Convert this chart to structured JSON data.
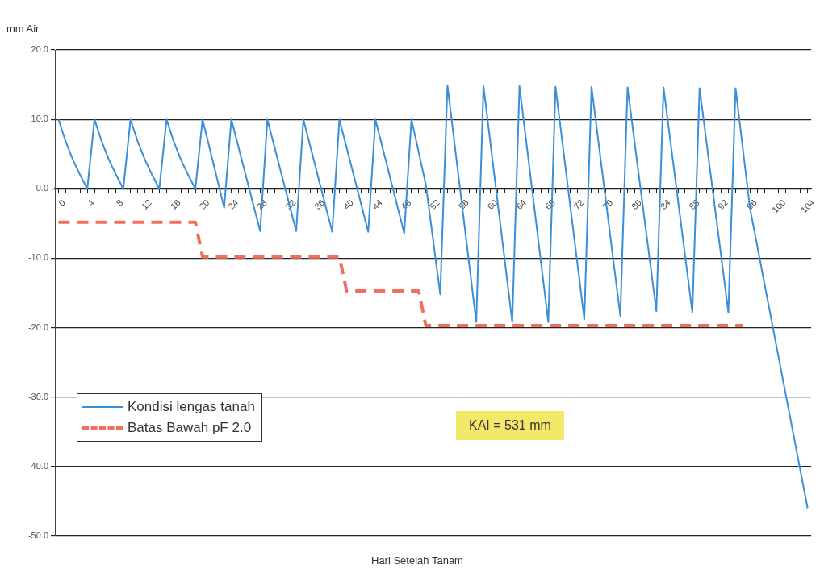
{
  "chart_data": {
    "type": "line",
    "ylabel": "mm Air",
    "xlabel": "Hari Setelah Tanam",
    "xlim": [
      -0.5,
      104.5
    ],
    "xticks": [
      0,
      {
        "value": 1,
        "label": null
      },
      {
        "value": 2,
        "label": null
      },
      {
        "value": 3,
        "label": null
      },
      4,
      {
        "value": 5,
        "label": null
      },
      {
        "value": 6,
        "label": null
      },
      {
        "value": 7,
        "label": null
      },
      8,
      {
        "value": 9,
        "label": null
      },
      {
        "value": 10,
        "label": null
      },
      {
        "value": 11,
        "label": null
      },
      12,
      {
        "value": 13,
        "label": null
      },
      {
        "value": 14,
        "label": null
      },
      {
        "value": 15,
        "label": null
      },
      16,
      {
        "value": 17,
        "label": null
      },
      {
        "value": 18,
        "label": null
      },
      {
        "value": 19,
        "label": null
      },
      20,
      {
        "value": 21,
        "label": null
      },
      {
        "value": 22,
        "label": null
      },
      {
        "value": 23,
        "label": null
      },
      24,
      {
        "value": 25,
        "label": null
      },
      {
        "value": 26,
        "label": null
      },
      {
        "value": 27,
        "label": null
      },
      28,
      {
        "value": 29,
        "label": null
      },
      {
        "value": 30,
        "label": null
      },
      {
        "value": 31,
        "label": null
      },
      32,
      {
        "value": 33,
        "label": null
      },
      {
        "value": 34,
        "label": null
      },
      {
        "value": 35,
        "label": null
      },
      36,
      {
        "value": 37,
        "label": null
      },
      {
        "value": 38,
        "label": null
      },
      {
        "value": 39,
        "label": null
      },
      40,
      {
        "value": 41,
        "label": null
      },
      {
        "value": 42,
        "label": null
      },
      {
        "value": 43,
        "label": null
      },
      44,
      {
        "value": 45,
        "label": null
      },
      {
        "value": 46,
        "label": null
      },
      {
        "value": 47,
        "label": null
      },
      48,
      {
        "value": 49,
        "label": null
      },
      {
        "value": 50,
        "label": null
      },
      {
        "value": 51,
        "label": null
      },
      52,
      {
        "value": 53,
        "label": null
      },
      {
        "value": 54,
        "label": null
      },
      {
        "value": 55,
        "label": null
      },
      56,
      {
        "value": 57,
        "label": null
      },
      {
        "value": 58,
        "label": null
      },
      {
        "value": 59,
        "label": null
      },
      60,
      {
        "value": 61,
        "label": null
      },
      {
        "value": 62,
        "label": null
      },
      {
        "value": 63,
        "label": null
      },
      64,
      {
        "value": 65,
        "label": null
      },
      {
        "value": 66,
        "label": null
      },
      {
        "value": 67,
        "label": null
      },
      68,
      {
        "value": 69,
        "label": null
      },
      {
        "value": 70,
        "label": null
      },
      {
        "value": 71,
        "label": null
      },
      72,
      {
        "value": 73,
        "label": null
      },
      {
        "value": 74,
        "label": null
      },
      {
        "value": 75,
        "label": null
      },
      76,
      {
        "value": 77,
        "label": null
      },
      {
        "value": 78,
        "label": null
      },
      {
        "value": 79,
        "label": null
      },
      80,
      {
        "value": 81,
        "label": null
      },
      {
        "value": 82,
        "label": null
      },
      {
        "value": 83,
        "label": null
      },
      84,
      {
        "value": 85,
        "label": null
      },
      {
        "value": 86,
        "label": null
      },
      {
        "value": 87,
        "label": null
      },
      88,
      {
        "value": 89,
        "label": null
      },
      {
        "value": 90,
        "label": null
      },
      {
        "value": 91,
        "label": null
      },
      92,
      {
        "value": 93,
        "label": null
      },
      {
        "value": 94,
        "label": null
      },
      {
        "value": 95,
        "label": null
      },
      96,
      {
        "value": 97,
        "label": null
      },
      {
        "value": 98,
        "label": null
      },
      {
        "value": 99,
        "label": null
      },
      100,
      {
        "value": 101,
        "label": null
      },
      {
        "value": 102,
        "label": null
      },
      {
        "value": 103,
        "label": null
      },
      104
    ],
    "ylim": [
      -50,
      20
    ],
    "yticks": [
      {
        "value": 20,
        "label": "20.0"
      },
      {
        "value": 10,
        "label": "10.0"
      },
      {
        "value": 0,
        "label": "0.0"
      },
      {
        "value": -10,
        "label": "-10.0"
      },
      {
        "value": -20,
        "label": "-20.0"
      },
      {
        "value": -30,
        "label": "-30.0"
      },
      {
        "value": -40,
        "label": "-40.0"
      },
      {
        "value": -50,
        "label": "-50.0"
      }
    ],
    "grid": "y",
    "legend": "bottom left",
    "marker": "none",
    "annotations": [
      "KAI = 531 mm"
    ],
    "series": [
      {
        "name": "Kondisi lengas tanah",
        "color": "#3a8fd8",
        "line_style": "solid",
        "x": [
          0,
          1,
          2,
          3,
          4,
          5,
          6,
          7,
          8,
          9,
          10,
          11,
          12,
          13,
          14,
          15,
          16,
          17,
          18,
          19,
          20,
          23,
          24,
          28,
          29,
          33,
          34,
          38,
          39,
          43,
          44,
          48,
          49,
          51,
          53,
          54,
          58,
          59,
          63,
          64,
          68,
          69,
          73,
          74,
          78,
          79,
          83,
          84,
          88,
          89,
          93,
          94,
          96,
          104
        ],
        "values": [
          10,
          6.8,
          4.2,
          2,
          0,
          10,
          6.8,
          4.2,
          2,
          0,
          10,
          6.8,
          4.2,
          2,
          0,
          10,
          6.8,
          4.2,
          2,
          0,
          10,
          -2.7,
          10,
          -6.1,
          10,
          -6.1,
          10,
          -6.2,
          10,
          -6.2,
          10,
          -6.4,
          10,
          0.6,
          -15.2,
          14.9,
          -19.2,
          14.8,
          -19.2,
          14.8,
          -19.2,
          14.7,
          -18.8,
          14.7,
          -18.3,
          14.6,
          -17.6,
          14.6,
          -17.8,
          14.5,
          -17.8,
          14.5,
          -2.8,
          -46
        ]
      },
      {
        "name": "Batas Bawah pF 2.0",
        "color": "#f07060",
        "line_style": "dashed",
        "x": [
          0,
          19,
          20,
          39,
          40,
          50,
          51,
          95
        ],
        "values": [
          -4.8,
          -4.8,
          -9.8,
          -9.8,
          -14.7,
          -14.7,
          -19.7,
          -19.7
        ]
      }
    ]
  }
}
